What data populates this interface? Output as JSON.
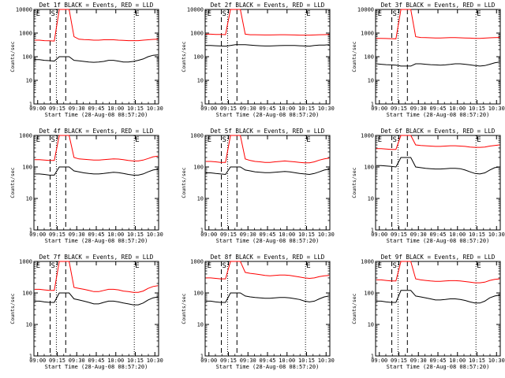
{
  "chart_data": [
    {
      "type": "line",
      "title": "Det 1f BLACK = Events, RED = LLD",
      "xlabel": "Start Time (28-Aug-08 08:57:20)",
      "ylabel": "Counts/sec",
      "yscale": "log",
      "ylim": [
        1,
        10000
      ],
      "x_ticks": [
        "09:00",
        "09:15",
        "09:30",
        "09:45",
        "10:00",
        "10:15",
        "10:30"
      ],
      "y_ticks": [
        "1",
        "10",
        "100",
        "1000",
        "10000"
      ],
      "markers": [
        "E",
        "S",
        "E"
      ],
      "series": [
        {
          "name": "Events",
          "color": "#000000",
          "values": [
            75,
            75,
            70,
            68,
            65,
            100,
            100,
            100,
            70,
            67,
            63,
            60,
            58,
            60,
            63,
            70,
            70,
            65,
            60,
            60,
            63,
            70,
            80,
            100,
            115,
            120
          ]
        },
        {
          "name": "LLD",
          "color": "#ff0000",
          "values": [
            500,
            500,
            480,
            470,
            460,
            10000,
            10000,
            10000,
            700,
            550,
            530,
            520,
            500,
            500,
            520,
            520,
            520,
            500,
            490,
            480,
            480,
            480,
            500,
            520,
            540,
            550
          ]
        }
      ]
    },
    {
      "type": "line",
      "title": "Det 2f BLACK = Events, RED = LLD",
      "xlabel": "Start Time (28-Aug-08 08:57:20)",
      "ylabel": "Counts/sec",
      "yscale": "log",
      "ylim": [
        1,
        10000
      ],
      "x_ticks": [
        "09:00",
        "09:15",
        "09:30",
        "09:45",
        "10:00",
        "10:15",
        "10:30"
      ],
      "y_ticks": [
        "1",
        "10",
        "100",
        "1000",
        "10000"
      ],
      "markers": [
        "E",
        "S",
        "E"
      ],
      "series": [
        {
          "name": "Events",
          "color": "#000000",
          "values": [
            300,
            300,
            290,
            285,
            280,
            300,
            320,
            320,
            320,
            310,
            300,
            290,
            285,
            285,
            290,
            295,
            300,
            300,
            300,
            290,
            285,
            280,
            300,
            310,
            310,
            320
          ]
        },
        {
          "name": "LLD",
          "color": "#ff0000",
          "values": [
            900,
            900,
            880,
            870,
            860,
            10000,
            10000,
            10000,
            900,
            850,
            850,
            840,
            830,
            830,
            840,
            850,
            850,
            840,
            830,
            820,
            820,
            820,
            830,
            850,
            860,
            870
          ]
        }
      ]
    },
    {
      "type": "line",
      "title": "Det 3f BLACK = Events, RED = LLD",
      "xlabel": "Start Time (28-Aug-08 08:57:20)",
      "ylabel": "Counts/sec",
      "yscale": "log",
      "ylim": [
        1,
        10000
      ],
      "x_ticks": [
        "09:00",
        "09:15",
        "09:30",
        "09:45",
        "10:00",
        "10:15",
        "10:30"
      ],
      "y_ticks": [
        "1",
        "10",
        "100",
        "1000",
        "10000"
      ],
      "markers": [
        "E",
        "S",
        "E"
      ],
      "series": [
        {
          "name": "Events",
          "color": "#000000",
          "values": [
            50,
            48,
            46,
            45,
            44,
            40,
            40,
            40,
            50,
            50,
            48,
            46,
            45,
            44,
            45,
            47,
            50,
            50,
            48,
            45,
            42,
            40,
            42,
            48,
            55,
            60
          ]
        },
        {
          "name": "LLD",
          "color": "#ff0000",
          "values": [
            600,
            600,
            590,
            580,
            570,
            10000,
            10000,
            10000,
            700,
            650,
            640,
            630,
            620,
            620,
            630,
            640,
            640,
            630,
            620,
            610,
            600,
            600,
            610,
            630,
            640,
            650
          ]
        }
      ]
    },
    {
      "type": "line",
      "title": "Det 4f BLACK = Events, RED = LLD",
      "xlabel": "Start Time (28-Aug-08 08:57:20)",
      "ylabel": "Counts/sec",
      "yscale": "log",
      "ylim": [
        1,
        1000
      ],
      "x_ticks": [
        "09:00",
        "09:15",
        "09:30",
        "09:45",
        "10:00",
        "10:15",
        "10:30"
      ],
      "y_ticks": [
        "1",
        "10",
        "100",
        "1000"
      ],
      "markers": [
        "E",
        "S",
        "E"
      ],
      "series": [
        {
          "name": "Events",
          "color": "#000000",
          "values": [
            60,
            60,
            58,
            55,
            55,
            100,
            100,
            100,
            75,
            70,
            65,
            62,
            60,
            60,
            62,
            65,
            68,
            66,
            62,
            58,
            55,
            55,
            60,
            70,
            80,
            85
          ]
        },
        {
          "name": "LLD",
          "color": "#ff0000",
          "values": [
            170,
            170,
            165,
            160,
            160,
            1000,
            1000,
            1000,
            200,
            180,
            175,
            170,
            165,
            165,
            170,
            175,
            180,
            178,
            170,
            160,
            155,
            155,
            165,
            185,
            210,
            220
          ]
        }
      ]
    },
    {
      "type": "line",
      "title": "Det 5f BLACK = Events, RED = LLD",
      "xlabel": "Start Time (28-Aug-08 08:57:20)",
      "ylabel": "Counts/sec",
      "yscale": "log",
      "ylim": [
        1,
        1000
      ],
      "x_ticks": [
        "09:00",
        "09:15",
        "09:30",
        "09:45",
        "10:00",
        "10:15",
        "10:30"
      ],
      "y_ticks": [
        "1",
        "10",
        "100",
        "1000"
      ],
      "markers": [
        "E",
        "S",
        "E"
      ],
      "series": [
        {
          "name": "Events",
          "color": "#000000",
          "values": [
            65,
            65,
            62,
            60,
            58,
            100,
            100,
            100,
            80,
            75,
            70,
            68,
            66,
            66,
            68,
            70,
            72,
            70,
            66,
            62,
            60,
            58,
            62,
            70,
            80,
            85
          ]
        },
        {
          "name": "LLD",
          "color": "#ff0000",
          "values": [
            150,
            150,
            145,
            140,
            140,
            1000,
            1000,
            1000,
            180,
            160,
            150,
            145,
            140,
            140,
            145,
            150,
            155,
            150,
            145,
            140,
            135,
            135,
            145,
            165,
            180,
            190
          ]
        }
      ]
    },
    {
      "type": "line",
      "title": "Det 6f BLACK = Events, RED = LLD",
      "xlabel": "Start Time (28-Aug-08 08:57:20)",
      "ylabel": "Counts/sec",
      "yscale": "log",
      "ylim": [
        1,
        1000
      ],
      "x_ticks": [
        "09:00",
        "09:15",
        "09:30",
        "09:45",
        "10:00",
        "10:15",
        "10:30"
      ],
      "y_ticks": [
        "1",
        "10",
        "100",
        "1000"
      ],
      "markers": [
        "E",
        "S",
        "E"
      ],
      "series": [
        {
          "name": "Events",
          "color": "#000000",
          "values": [
            110,
            110,
            108,
            105,
            100,
            200,
            200,
            200,
            100,
            95,
            90,
            88,
            86,
            86,
            88,
            90,
            90,
            88,
            80,
            70,
            62,
            60,
            65,
            80,
            95,
            100
          ]
        },
        {
          "name": "LLD",
          "color": "#ff0000",
          "values": [
            380,
            380,
            370,
            360,
            360,
            1000,
            1000,
            1000,
            500,
            480,
            470,
            460,
            450,
            450,
            460,
            470,
            470,
            460,
            450,
            430,
            420,
            420,
            430,
            460,
            480,
            500
          ]
        }
      ]
    },
    {
      "type": "line",
      "title": "Det 7f BLACK = Events, RED = LLD",
      "xlabel": "Start Time (28-Aug-08 08:57:20)",
      "ylabel": "Counts/sec",
      "yscale": "log",
      "ylim": [
        1,
        1000
      ],
      "x_ticks": [
        "09:00",
        "09:15",
        "09:30",
        "09:45",
        "10:00",
        "10:15",
        "10:30"
      ],
      "y_ticks": [
        "1",
        "10",
        "100",
        "1000"
      ],
      "markers": [
        "E",
        "S",
        "E"
      ],
      "series": [
        {
          "name": "Events",
          "color": "#000000",
          "values": [
            55,
            55,
            52,
            50,
            50,
            100,
            100,
            100,
            65,
            60,
            55,
            50,
            45,
            45,
            50,
            55,
            55,
            52,
            48,
            45,
            42,
            42,
            48,
            60,
            70,
            75
          ]
        },
        {
          "name": "LLD",
          "color": "#ff0000",
          "values": [
            130,
            130,
            125,
            120,
            120,
            1000,
            1000,
            1000,
            150,
            140,
            130,
            120,
            110,
            110,
            120,
            130,
            130,
            125,
            115,
            110,
            105,
            105,
            115,
            140,
            160,
            170
          ]
        }
      ]
    },
    {
      "type": "line",
      "title": "Det 8f BLACK = Events, RED = LLD",
      "xlabel": "Start Time (28-Aug-08 08:57:20)",
      "ylabel": "Counts/sec",
      "yscale": "log",
      "ylim": [
        1,
        1000
      ],
      "x_ticks": [
        "09:00",
        "09:15",
        "09:30",
        "09:45",
        "10:00",
        "10:15",
        "10:30"
      ],
      "y_ticks": [
        "1",
        "10",
        "100",
        "1000"
      ],
      "markers": [
        "E",
        "S",
        "E"
      ],
      "series": [
        {
          "name": "Events",
          "color": "#000000",
          "values": [
            55,
            55,
            52,
            50,
            50,
            100,
            100,
            100,
            80,
            75,
            72,
            70,
            68,
            68,
            70,
            72,
            72,
            70,
            66,
            62,
            55,
            52,
            55,
            65,
            75,
            80
          ]
        },
        {
          "name": "LLD",
          "color": "#ff0000",
          "values": [
            300,
            300,
            290,
            280,
            280,
            1000,
            1000,
            1000,
            450,
            420,
            400,
            380,
            360,
            350,
            360,
            370,
            370,
            360,
            340,
            320,
            300,
            290,
            300,
            330,
            350,
            360
          ]
        }
      ]
    },
    {
      "type": "line",
      "title": "Det 9f BLACK = Events, RED = LLD",
      "xlabel": "Start Time (28-Aug-08 08:57:20)",
      "ylabel": "Counts/sec",
      "yscale": "log",
      "ylim": [
        1,
        1000
      ],
      "x_ticks": [
        "09:00",
        "09:15",
        "09:30",
        "09:45",
        "10:00",
        "10:15",
        "10:30"
      ],
      "y_ticks": [
        "1",
        "10",
        "100",
        "1000"
      ],
      "markers": [
        "E",
        "S",
        "E"
      ],
      "series": [
        {
          "name": "Events",
          "color": "#000000",
          "values": [
            55,
            55,
            52,
            50,
            50,
            120,
            120,
            120,
            80,
            75,
            70,
            65,
            60,
            60,
            62,
            65,
            65,
            62,
            58,
            52,
            48,
            48,
            55,
            70,
            80,
            85
          ]
        },
        {
          "name": "LLD",
          "color": "#ff0000",
          "values": [
            260,
            260,
            250,
            240,
            240,
            1000,
            1000,
            1000,
            280,
            260,
            250,
            240,
            235,
            235,
            240,
            245,
            245,
            240,
            230,
            220,
            210,
            210,
            220,
            250,
            270,
            280
          ]
        }
      ]
    }
  ]
}
